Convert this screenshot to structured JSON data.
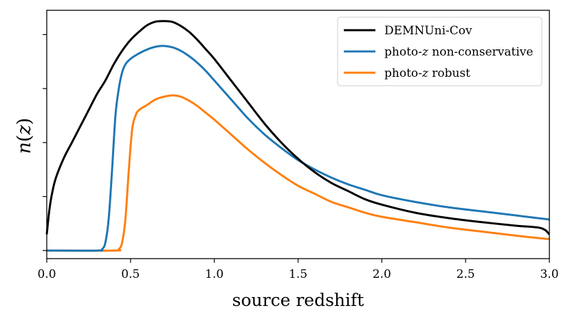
{
  "chart_data": {
    "type": "line",
    "title": "",
    "xlabel": "source redshift",
    "ylabel": "n(z)",
    "xlim": [
      0.0,
      3.0
    ],
    "ylim": [
      -0.03,
      0.89
    ],
    "xticks": [
      0.0,
      0.5,
      1.0,
      1.5,
      2.0,
      2.5,
      3.0
    ],
    "xtick_labels": [
      "0.0",
      "0.5",
      "1.0",
      "1.5",
      "2.0",
      "2.5",
      "3.0"
    ],
    "yticks": [
      0.0,
      0.2,
      0.4,
      0.6,
      0.8
    ],
    "ytick_labels_shown": false,
    "grid": false,
    "legend_position": "top-right",
    "series": [
      {
        "name": "DEMNUni-Cov",
        "color": "#000000",
        "x": [
          0.0,
          0.02,
          0.05,
          0.1,
          0.15,
          0.2,
          0.25,
          0.3,
          0.35,
          0.4,
          0.45,
          0.5,
          0.55,
          0.6,
          0.65,
          0.7,
          0.75,
          0.8,
          0.85,
          0.9,
          0.95,
          1.0,
          1.1,
          1.2,
          1.3,
          1.4,
          1.5,
          1.6,
          1.7,
          1.8,
          1.9,
          2.0,
          2.2,
          2.4,
          2.6,
          2.8,
          2.95,
          3.0
        ],
        "y": [
          0.06,
          0.17,
          0.26,
          0.34,
          0.4,
          0.46,
          0.52,
          0.58,
          0.63,
          0.69,
          0.74,
          0.78,
          0.81,
          0.835,
          0.848,
          0.85,
          0.847,
          0.832,
          0.81,
          0.78,
          0.745,
          0.71,
          0.63,
          0.55,
          0.47,
          0.4,
          0.34,
          0.29,
          0.25,
          0.22,
          0.19,
          0.17,
          0.14,
          0.12,
          0.105,
          0.092,
          0.083,
          0.06
        ]
      },
      {
        "name": "photo-z non-conservative",
        "color": "#1f77b4",
        "x": [
          0.0,
          0.3,
          0.33,
          0.35,
          0.37,
          0.39,
          0.41,
          0.43,
          0.45,
          0.47,
          0.5,
          0.55,
          0.6,
          0.65,
          0.7,
          0.75,
          0.8,
          0.85,
          0.9,
          0.95,
          1.0,
          1.1,
          1.2,
          1.3,
          1.4,
          1.5,
          1.6,
          1.7,
          1.8,
          1.9,
          2.0,
          2.2,
          2.4,
          2.6,
          2.8,
          3.0
        ],
        "y": [
          0.0,
          0.0,
          0.005,
          0.03,
          0.12,
          0.3,
          0.5,
          0.6,
          0.66,
          0.69,
          0.71,
          0.73,
          0.745,
          0.755,
          0.758,
          0.753,
          0.74,
          0.72,
          0.695,
          0.665,
          0.63,
          0.56,
          0.49,
          0.43,
          0.38,
          0.335,
          0.3,
          0.27,
          0.245,
          0.225,
          0.205,
          0.18,
          0.16,
          0.145,
          0.13,
          0.115
        ]
      },
      {
        "name": "photo-z robust",
        "color": "#ff7f0e",
        "x": [
          0.0,
          0.4,
          0.43,
          0.45,
          0.47,
          0.49,
          0.51,
          0.53,
          0.55,
          0.6,
          0.65,
          0.7,
          0.75,
          0.8,
          0.85,
          0.9,
          0.95,
          1.0,
          1.1,
          1.2,
          1.3,
          1.4,
          1.5,
          1.6,
          1.7,
          1.8,
          1.9,
          2.0,
          2.2,
          2.4,
          2.6,
          2.8,
          3.0
        ],
        "y": [
          0.0,
          0.0,
          0.005,
          0.03,
          0.12,
          0.3,
          0.45,
          0.5,
          0.52,
          0.54,
          0.56,
          0.57,
          0.575,
          0.57,
          0.555,
          0.535,
          0.51,
          0.485,
          0.43,
          0.375,
          0.325,
          0.28,
          0.24,
          0.21,
          0.18,
          0.16,
          0.14,
          0.125,
          0.105,
          0.085,
          0.07,
          0.055,
          0.042
        ]
      }
    ],
    "legend": {
      "entries": [
        {
          "pre": "DEMNUni-Cov",
          "z": "",
          "post": ""
        },
        {
          "pre": "photo-",
          "z": "z",
          "post": " non-conservative"
        },
        {
          "pre": "photo-",
          "z": "z",
          "post": " robust"
        }
      ]
    }
  }
}
